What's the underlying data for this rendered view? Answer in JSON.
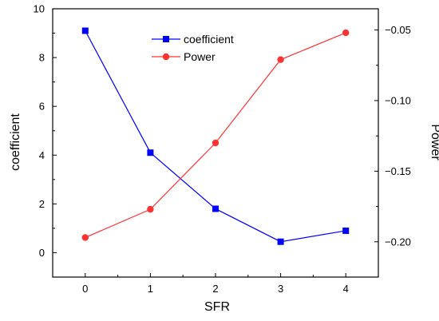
{
  "chart_data": {
    "type": "line",
    "x": [
      0,
      1,
      2,
      3,
      4
    ],
    "xlabel": "SFR",
    "x_ticks": [
      "0",
      "1",
      "2",
      "3",
      "4"
    ],
    "xlim": [
      -0.5,
      4.5
    ],
    "y_left": {
      "label": "coefficient",
      "ylim": [
        -1,
        10
      ],
      "ticks": [
        "0",
        "2",
        "4",
        "6",
        "8",
        "10"
      ]
    },
    "y_right": {
      "label": "Power",
      "ylim": [
        -0.225,
        -0.035
      ],
      "ticks": [
        "-0.05",
        "-0.10",
        "-0.15",
        "-0.20"
      ]
    },
    "series": [
      {
        "name": "coefficient",
        "axis": "left",
        "marker": "square",
        "color": "#0000ff",
        "values": [
          9.1,
          4.1,
          1.8,
          0.45,
          0.9
        ]
      },
      {
        "name": "Power",
        "axis": "right",
        "marker": "circle",
        "color": "#ff3333",
        "values": [
          -0.197,
          -0.177,
          -0.13,
          -0.071,
          -0.052
        ]
      }
    ],
    "legend_position": "top-center",
    "grid": false
  }
}
